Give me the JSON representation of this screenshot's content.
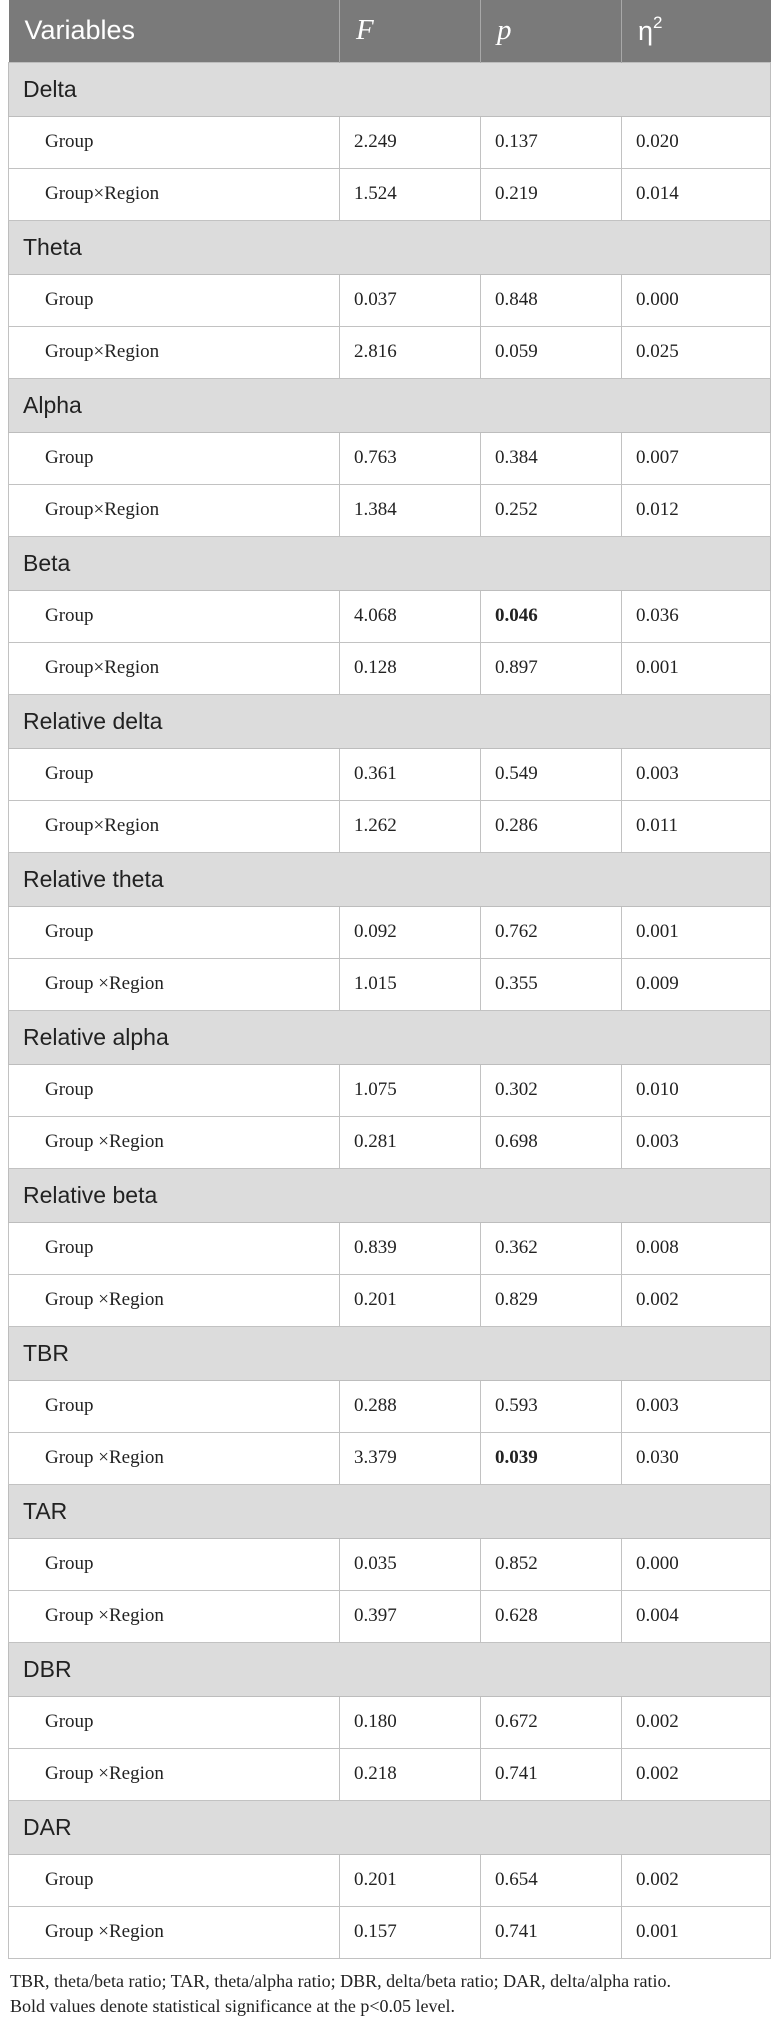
{
  "header": {
    "col1": "Variables",
    "col2": "F",
    "col3": "p",
    "col4": "η",
    "col4_sup": "2"
  },
  "sections": [
    {
      "title": "Delta",
      "rows": [
        {
          "label": "Group",
          "F": "2.249",
          "p": "0.137",
          "eta": "0.020",
          "sig": false
        },
        {
          "label": "Group×Region",
          "F": "1.524",
          "p": "0.219",
          "eta": "0.014",
          "sig": false
        }
      ]
    },
    {
      "title": "Theta",
      "rows": [
        {
          "label": "Group",
          "F": "0.037",
          "p": "0.848",
          "eta": "0.000",
          "sig": false
        },
        {
          "label": "Group×Region",
          "F": "2.816",
          "p": "0.059",
          "eta": "0.025",
          "sig": false
        }
      ]
    },
    {
      "title": "Alpha",
      "rows": [
        {
          "label": "Group",
          "F": "0.763",
          "p": "0.384",
          "eta": "0.007",
          "sig": false
        },
        {
          "label": "Group×Region",
          "F": "1.384",
          "p": "0.252",
          "eta": "0.012",
          "sig": false
        }
      ]
    },
    {
      "title": "Beta",
      "rows": [
        {
          "label": "Group",
          "F": "4.068",
          "p": "0.046",
          "eta": "0.036",
          "sig": true
        },
        {
          "label": "Group×Region",
          "F": "0.128",
          "p": "0.897",
          "eta": "0.001",
          "sig": false
        }
      ]
    },
    {
      "title": "Relative delta",
      "rows": [
        {
          "label": "Group",
          "F": "0.361",
          "p": "0.549",
          "eta": "0.003",
          "sig": false
        },
        {
          "label": "Group×Region",
          "F": "1.262",
          "p": "0.286",
          "eta": "0.011",
          "sig": false
        }
      ]
    },
    {
      "title": "Relative theta",
      "rows": [
        {
          "label": "Group",
          "F": "0.092",
          "p": "0.762",
          "eta": "0.001",
          "sig": false
        },
        {
          "label": "Group ×Region",
          "F": "1.015",
          "p": "0.355",
          "eta": "0.009",
          "sig": false
        }
      ]
    },
    {
      "title": "Relative alpha",
      "rows": [
        {
          "label": "Group",
          "F": "1.075",
          "p": "0.302",
          "eta": "0.010",
          "sig": false
        },
        {
          "label": "Group ×Region",
          "F": "0.281",
          "p": "0.698",
          "eta": "0.003",
          "sig": false
        }
      ]
    },
    {
      "title": "Relative beta",
      "rows": [
        {
          "label": "Group",
          "F": "0.839",
          "p": "0.362",
          "eta": "0.008",
          "sig": false
        },
        {
          "label": "Group ×Region",
          "F": "0.201",
          "p": "0.829",
          "eta": "0.002",
          "sig": false
        }
      ]
    },
    {
      "title": "TBR",
      "rows": [
        {
          "label": "Group",
          "F": "0.288",
          "p": "0.593",
          "eta": "0.003",
          "sig": false
        },
        {
          "label": "Group ×Region",
          "F": "3.379",
          "p": "0.039",
          "eta": "0.030",
          "sig": true
        }
      ]
    },
    {
      "title": "TAR",
      "rows": [
        {
          "label": "Group",
          "F": "0.035",
          "p": "0.852",
          "eta": "0.000",
          "sig": false
        },
        {
          "label": "Group ×Region",
          "F": "0.397",
          "p": "0.628",
          "eta": "0.004",
          "sig": false
        }
      ]
    },
    {
      "title": "DBR",
      "rows": [
        {
          "label": "Group",
          "F": "0.180",
          "p": "0.672",
          "eta": "0.002",
          "sig": false
        },
        {
          "label": "Group ×Region",
          "F": "0.218",
          "p": "0.741",
          "eta": "0.002",
          "sig": false
        }
      ]
    },
    {
      "title": "DAR",
      "rows": [
        {
          "label": "Group",
          "F": "0.201",
          "p": "0.654",
          "eta": "0.002",
          "sig": false
        },
        {
          "label": "Group ×Region",
          "F": "0.157",
          "p": "0.741",
          "eta": "0.001",
          "sig": false
        }
      ]
    }
  ],
  "notes": {
    "line1": "TBR, theta/beta ratio; TAR, theta/alpha ratio; DBR, delta/beta ratio; DAR, delta/alpha ratio.",
    "line2": "Bold values denote statistical significance at the p<0.05 level."
  }
}
